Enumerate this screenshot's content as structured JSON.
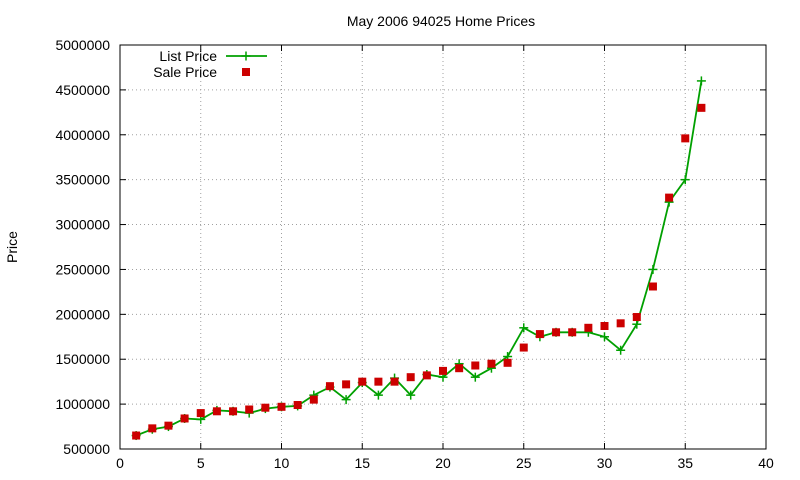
{
  "chart_data": {
    "type": "line",
    "title": "May 2006 94025 Home Prices",
    "xlabel": "",
    "ylabel": "Price",
    "xlim": [
      0,
      40
    ],
    "ylim": [
      500000,
      5000000
    ],
    "x_ticks": [
      0,
      5,
      10,
      15,
      20,
      25,
      30,
      35,
      40
    ],
    "y_ticks": [
      500000,
      1000000,
      1500000,
      2000000,
      2500000,
      3000000,
      3500000,
      4000000,
      4500000,
      5000000
    ],
    "grid": true,
    "legend_position": "top-left",
    "x": [
      1,
      2,
      3,
      4,
      5,
      6,
      7,
      8,
      9,
      10,
      11,
      12,
      13,
      14,
      15,
      16,
      17,
      18,
      19,
      20,
      21,
      22,
      23,
      24,
      25,
      26,
      27,
      28,
      29,
      30,
      31,
      32,
      33,
      34,
      35,
      36
    ],
    "series": [
      {
        "name": "List Price",
        "style": "linespoints",
        "marker": "plus",
        "color": "#00a000",
        "values": [
          650000,
          720000,
          750000,
          840000,
          830000,
          930000,
          920000,
          900000,
          950000,
          970000,
          980000,
          1100000,
          1190000,
          1050000,
          1240000,
          1100000,
          1290000,
          1100000,
          1330000,
          1300000,
          1450000,
          1300000,
          1400000,
          1530000,
          1850000,
          1750000,
          1800000,
          1800000,
          1800000,
          1750000,
          1600000,
          1890000,
          2500000,
          3250000,
          3500000,
          4600000
        ]
      },
      {
        "name": "Sale Price",
        "style": "points",
        "marker": "square",
        "color": "#cc0000",
        "values": [
          650000,
          730000,
          760000,
          840000,
          900000,
          920000,
          920000,
          940000,
          960000,
          970000,
          990000,
          1050000,
          1200000,
          1220000,
          1250000,
          1250000,
          1250000,
          1300000,
          1320000,
          1370000,
          1400000,
          1430000,
          1450000,
          1460000,
          1630000,
          1780000,
          1800000,
          1800000,
          1850000,
          1870000,
          1900000,
          1970000,
          2310000,
          3300000,
          3960000,
          4300000
        ]
      }
    ]
  }
}
